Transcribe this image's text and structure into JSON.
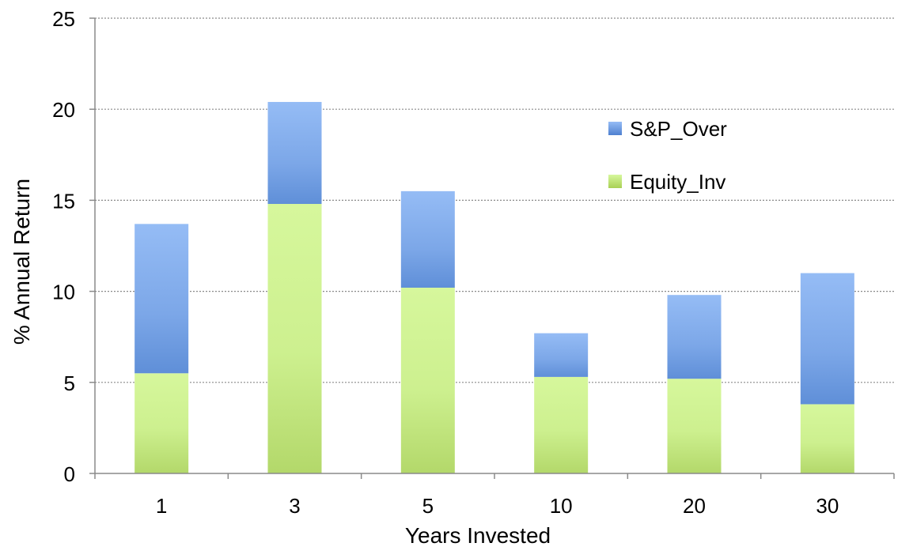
{
  "chart_data": {
    "type": "bar",
    "stacked": true,
    "title": "",
    "xlabel": "Years Invested",
    "ylabel": "% Annual Return",
    "categories": [
      "1",
      "3",
      "5",
      "10",
      "20",
      "30"
    ],
    "ylim": [
      0,
      25
    ],
    "yticks": [
      0,
      5,
      10,
      15,
      20,
      25
    ],
    "grid": true,
    "legend_position": "top-right",
    "series": [
      {
        "name": "Equity_Inv",
        "values": [
          5.5,
          14.8,
          10.2,
          5.3,
          5.2,
          3.8
        ],
        "color": "#b5da6a"
      },
      {
        "name": "S&P_Over",
        "values": [
          8.2,
          5.6,
          5.3,
          2.4,
          4.6,
          7.2
        ],
        "color": "#7aa8ea"
      }
    ],
    "legend_order": [
      "S&P_Over",
      "Equity_Inv"
    ]
  }
}
